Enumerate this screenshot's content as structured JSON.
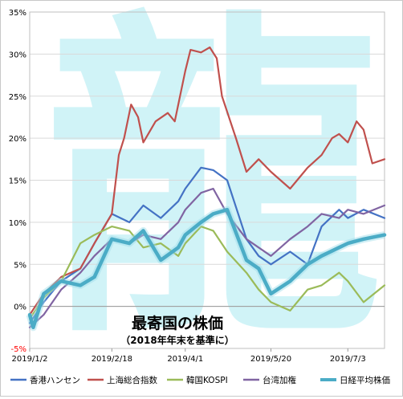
{
  "chart_data": {
    "type": "line",
    "title": "最寄国の株価",
    "subtitle": "（2018年年末を基準に）",
    "watermark": "龍",
    "ylim": [
      -5,
      35
    ],
    "yticks": [
      "-5%",
      "0%",
      "5%",
      "10%",
      "15%",
      "20%",
      "25%",
      "30%",
      "35%"
    ],
    "ytick_values": [
      -5,
      0,
      5,
      10,
      15,
      20,
      25,
      30,
      35
    ],
    "xticks": [
      "2019/1/2",
      "2019/2/18",
      "2019/4/1",
      "2019/5/20",
      "2019/7/3"
    ],
    "xtick_values": [
      "2019-01-02",
      "2019-02-18",
      "2019-04-01",
      "2019-05-20",
      "2019-07-03"
    ],
    "xlim": [
      "2019-01-02",
      "2019-07-24"
    ],
    "grid": true,
    "legend_position": "bottom",
    "colors": {
      "hk": "#4472c4",
      "sh": "#c0504d",
      "kr": "#9bbb59",
      "tw": "#8064a2",
      "jp": "#4bacc6",
      "watermark": "#c8f1f6"
    },
    "series": [
      {
        "name": "香港ハンセン",
        "color": "#4472c4",
        "x": [
          "2019-01-02",
          "2019-01-10",
          "2019-01-20",
          "2019-01-31",
          "2019-02-08",
          "2019-02-18",
          "2019-02-28",
          "2019-03-08",
          "2019-03-18",
          "2019-03-28",
          "2019-04-01",
          "2019-04-10",
          "2019-04-17",
          "2019-04-25",
          "2019-05-06",
          "2019-05-13",
          "2019-05-20",
          "2019-05-31",
          "2019-06-10",
          "2019-06-18",
          "2019-06-28",
          "2019-07-03",
          "2019-07-12",
          "2019-07-24"
        ],
        "y": [
          -2.0,
          0.5,
          3.0,
          4.5,
          7.5,
          11.0,
          10.0,
          12.0,
          10.5,
          12.5,
          14.0,
          16.5,
          16.2,
          15.0,
          8.0,
          6.0,
          5.0,
          6.5,
          5.0,
          9.5,
          11.5,
          10.5,
          11.5,
          10.5
        ]
      },
      {
        "name": "上海総合指数",
        "color": "#c0504d",
        "x": [
          "2019-01-02",
          "2019-01-10",
          "2019-01-20",
          "2019-01-31",
          "2019-02-08",
          "2019-02-18",
          "2019-02-22",
          "2019-02-25",
          "2019-03-01",
          "2019-03-05",
          "2019-03-08",
          "2019-03-15",
          "2019-03-22",
          "2019-03-26",
          "2019-04-01",
          "2019-04-04",
          "2019-04-10",
          "2019-04-15",
          "2019-04-19",
          "2019-04-22",
          "2019-04-30",
          "2019-05-06",
          "2019-05-13",
          "2019-05-20",
          "2019-05-31",
          "2019-06-10",
          "2019-06-18",
          "2019-06-24",
          "2019-06-28",
          "2019-07-03",
          "2019-07-08",
          "2019-07-12",
          "2019-07-17",
          "2019-07-24"
        ],
        "y": [
          -1.0,
          1.5,
          3.5,
          4.5,
          7.5,
          11.0,
          18.0,
          20.0,
          24.0,
          22.5,
          19.5,
          22.0,
          23.0,
          22.0,
          28.0,
          30.5,
          30.2,
          30.8,
          29.5,
          25.0,
          20.0,
          16.0,
          17.5,
          16.0,
          14.0,
          16.5,
          18.0,
          20.0,
          20.5,
          19.5,
          22.0,
          21.0,
          17.0,
          17.5
        ]
      },
      {
        "name": "韓国KOSPI",
        "color": "#9bbb59",
        "x": [
          "2019-01-02",
          "2019-01-10",
          "2019-01-20",
          "2019-01-31",
          "2019-02-08",
          "2019-02-18",
          "2019-02-28",
          "2019-03-08",
          "2019-03-18",
          "2019-03-28",
          "2019-04-01",
          "2019-04-10",
          "2019-04-17",
          "2019-04-25",
          "2019-05-06",
          "2019-05-13",
          "2019-05-20",
          "2019-05-31",
          "2019-06-10",
          "2019-06-18",
          "2019-06-28",
          "2019-07-03",
          "2019-07-12",
          "2019-07-24"
        ],
        "y": [
          -1.5,
          1.0,
          3.0,
          7.5,
          8.5,
          9.5,
          9.0,
          7.0,
          7.5,
          6.0,
          7.5,
          9.5,
          9.0,
          6.5,
          4.0,
          2.0,
          0.5,
          -0.5,
          2.0,
          2.5,
          4.0,
          3.0,
          0.5,
          2.5
        ]
      },
      {
        "name": "台湾加権",
        "color": "#8064a2",
        "x": [
          "2019-01-02",
          "2019-01-10",
          "2019-01-20",
          "2019-01-31",
          "2019-02-08",
          "2019-02-18",
          "2019-02-28",
          "2019-03-08",
          "2019-03-18",
          "2019-03-28",
          "2019-04-01",
          "2019-04-10",
          "2019-04-17",
          "2019-04-25",
          "2019-05-06",
          "2019-05-13",
          "2019-05-20",
          "2019-05-31",
          "2019-06-10",
          "2019-06-18",
          "2019-06-28",
          "2019-07-03",
          "2019-07-12",
          "2019-07-24"
        ],
        "y": [
          -2.5,
          -1.0,
          2.0,
          4.0,
          6.0,
          8.0,
          7.5,
          8.5,
          8.0,
          10.0,
          11.5,
          13.5,
          14.0,
          11.0,
          8.0,
          7.0,
          6.0,
          8.0,
          9.5,
          11.0,
          10.5,
          11.5,
          11.0,
          12.0
        ]
      },
      {
        "name": "日経平均株価",
        "color": "#4bacc6",
        "x": [
          "2019-01-02",
          "2019-01-04",
          "2019-01-10",
          "2019-01-20",
          "2019-01-31",
          "2019-02-08",
          "2019-02-18",
          "2019-02-28",
          "2019-03-08",
          "2019-03-18",
          "2019-03-28",
          "2019-04-01",
          "2019-04-10",
          "2019-04-17",
          "2019-04-25",
          "2019-05-06",
          "2019-05-13",
          "2019-05-20",
          "2019-05-31",
          "2019-06-10",
          "2019-06-18",
          "2019-06-28",
          "2019-07-03",
          "2019-07-12",
          "2019-07-24"
        ],
        "y": [
          -1.0,
          -2.5,
          1.5,
          3.0,
          2.5,
          3.5,
          8.0,
          7.5,
          9.0,
          5.5,
          7.0,
          8.5,
          10.0,
          11.0,
          11.5,
          5.5,
          4.5,
          1.5,
          3.0,
          5.0,
          6.0,
          7.0,
          7.5,
          8.0,
          8.5
        ]
      }
    ]
  }
}
